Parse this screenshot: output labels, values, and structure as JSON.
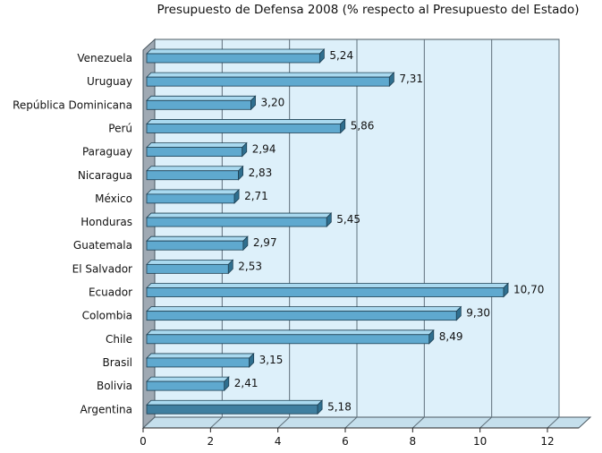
{
  "chart_data": {
    "type": "bar",
    "orientation": "horizontal",
    "title": "Presupuesto de Defensa 2008 (% respecto al Presupuesto del Estado)",
    "categories": [
      "Venezuela",
      "Uruguay",
      "República Dominicana",
      "Perú",
      "Paraguay",
      "Nicaragua",
      "México",
      "Honduras",
      "Guatemala",
      "El Salvador",
      "Ecuador",
      "Colombia",
      "Chile",
      "Brasil",
      "Bolivia",
      "Argentina"
    ],
    "values": [
      5.24,
      7.31,
      3.2,
      5.86,
      2.94,
      2.83,
      2.71,
      5.45,
      2.97,
      2.53,
      10.7,
      9.3,
      8.49,
      3.15,
      2.41,
      5.18
    ],
    "value_labels": [
      "5,24",
      "7,31",
      "3,20",
      "5,86",
      "2,94",
      "2,83",
      "2,71",
      "5,45",
      "2,97",
      "2,53",
      "10,70",
      "9,30",
      "8,49",
      "3,15",
      "2,41",
      "5,18"
    ],
    "xlim": [
      0,
      12
    ],
    "xticks": [
      "0",
      "2",
      "4",
      "6",
      "8",
      "10",
      "12"
    ],
    "xlabel": "",
    "ylabel": "",
    "grid": true,
    "legend": "none",
    "colors": {
      "bar_front": "#5fa9cf",
      "bar_top": "#a9d9ef",
      "bar_side": "#2f6f8f",
      "highlight_front": "#3f7fa0",
      "plot_back": "#ddf0fa",
      "plot_floor": "#c5dfec",
      "left_wall": "#9fa9b3",
      "gridline": "#5e6f7a"
    }
  }
}
